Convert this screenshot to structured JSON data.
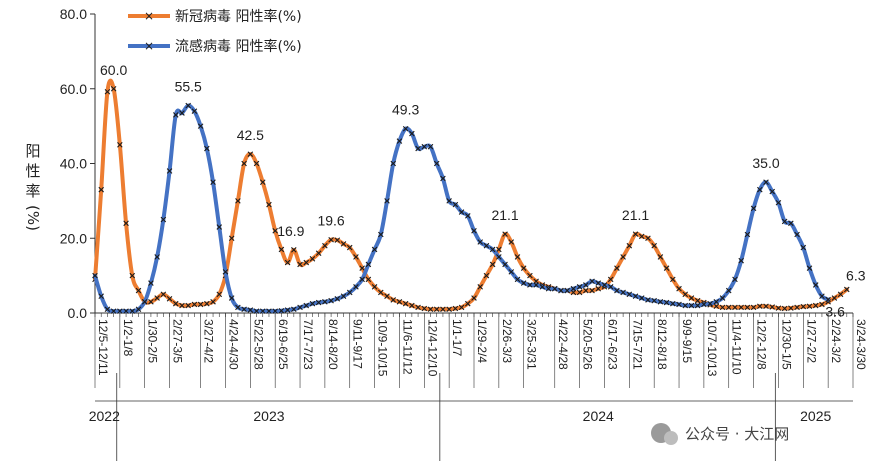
{
  "chart_data": {
    "type": "line",
    "ylabel_chars": [
      "阳",
      "性",
      "率",
      "(%)"
    ],
    "ylim": [
      0,
      80
    ],
    "yticks": [
      "0.0",
      "20.0",
      "40.0",
      "60.0",
      "80.0"
    ],
    "x_range": [
      0,
      171
    ],
    "categories": [
      {
        "label": "12/5-12/11",
        "x": 0
      },
      {
        "label": "1/2-1/8",
        "x": 4
      },
      {
        "label": "1/30-2/5",
        "x": 8
      },
      {
        "label": "2/27-3/5",
        "x": 12
      },
      {
        "label": "3/27-4/2",
        "x": 17
      },
      {
        "label": "4/24-4/30",
        "x": 21
      },
      {
        "label": "5/22-5/28",
        "x": 25
      },
      {
        "label": "6/19-6/25",
        "x": 29
      },
      {
        "label": "7/17-7/23",
        "x": 33
      },
      {
        "label": "8/14-8/20",
        "x": 37
      },
      {
        "label": "9/11-9/17",
        "x": 41
      },
      {
        "label": "10/9-10/15",
        "x": 45
      },
      {
        "label": "11/6-11/12",
        "x": 49
      },
      {
        "label": "12/4-12/10",
        "x": 53
      },
      {
        "label": "1/1-1/7",
        "x": 57
      },
      {
        "label": "1/29-2/4",
        "x": 61
      },
      {
        "label": "2/26-3/3",
        "x": 65
      },
      {
        "label": "3/25-3/31",
        "x": 69
      },
      {
        "label": "4/22-4/28",
        "x": 74
      },
      {
        "label": "5/20-5/26",
        "x": 78
      },
      {
        "label": "6/17-6/23",
        "x": 82
      },
      {
        "label": "7/15-7/21",
        "x": 86
      },
      {
        "label": "8/12-8/18",
        "x": 90
      },
      {
        "label": "9/9-9/15",
        "x": 94
      },
      {
        "label": "10/7-10/13",
        "x": 98
      },
      {
        "label": "11/4-11/10",
        "x": 102
      },
      {
        "label": "12/2-12/8",
        "x": 106
      },
      {
        "label": "12/30-1/5",
        "x": 110
      },
      {
        "label": "1/27-2/2",
        "x": 114
      },
      {
        "label": "2/24-3/2",
        "x": 118
      },
      {
        "label": "3/24-3/30",
        "x": 122
      }
    ],
    "years": [
      {
        "label": "2022",
        "x": 1.5
      },
      {
        "label": "2023",
        "x": 28
      },
      {
        "label": "2024",
        "x": 81
      },
      {
        "label": "2025",
        "x": 116
      }
    ],
    "year_boundaries": [
      3.5,
      55.5,
      109.5
    ],
    "series": [
      {
        "name": "新冠病毒 阳性率(%)",
        "color": "#ED7D31",
        "points": [
          [
            0,
            9
          ],
          [
            1,
            33
          ],
          [
            2,
            59.2
          ],
          [
            3,
            60
          ],
          [
            4,
            45
          ],
          [
            5,
            24
          ],
          [
            6,
            10
          ],
          [
            7,
            6
          ],
          [
            8,
            3
          ],
          [
            9,
            3
          ],
          [
            10,
            4
          ],
          [
            11,
            5
          ],
          [
            12,
            3.8
          ],
          [
            13,
            2.5
          ],
          [
            14,
            2
          ],
          [
            15,
            2
          ],
          [
            16,
            2.3
          ],
          [
            17,
            2.3
          ],
          [
            18,
            2.5
          ],
          [
            19,
            3
          ],
          [
            20,
            5
          ],
          [
            21,
            10
          ],
          [
            22,
            20
          ],
          [
            23,
            30
          ],
          [
            24,
            40
          ],
          [
            25,
            42.5
          ],
          [
            26,
            40
          ],
          [
            27,
            35
          ],
          [
            28,
            29
          ],
          [
            29,
            22
          ],
          [
            30,
            17
          ],
          [
            31,
            13.5
          ],
          [
            32,
            16.9
          ],
          [
            33,
            13
          ],
          [
            34,
            13.5
          ],
          [
            35,
            14.5
          ],
          [
            36,
            16
          ],
          [
            37,
            18
          ],
          [
            38,
            19.6
          ],
          [
            39,
            19.5
          ],
          [
            40,
            18.5
          ],
          [
            41,
            17.5
          ],
          [
            42,
            15
          ],
          [
            43,
            12
          ],
          [
            44,
            9
          ],
          [
            45,
            7
          ],
          [
            46,
            5.5
          ],
          [
            47,
            4.5
          ],
          [
            48,
            3.5
          ],
          [
            49,
            3
          ],
          [
            50,
            2.5
          ],
          [
            51,
            2
          ],
          [
            52,
            1.5
          ],
          [
            53,
            1.2
          ],
          [
            54,
            1
          ],
          [
            55,
            1
          ],
          [
            56,
            1
          ],
          [
            57,
            1
          ],
          [
            58,
            1.2
          ],
          [
            59,
            1.5
          ],
          [
            60,
            2.5
          ],
          [
            61,
            4
          ],
          [
            62,
            7
          ],
          [
            63,
            10
          ],
          [
            64,
            13
          ],
          [
            65,
            17
          ],
          [
            66,
            21.1
          ],
          [
            67,
            19
          ],
          [
            68,
            15
          ],
          [
            69,
            12
          ],
          [
            70,
            10
          ],
          [
            71,
            8.5
          ],
          [
            72,
            7.5
          ],
          [
            73,
            7
          ],
          [
            74,
            6.5
          ],
          [
            75,
            6
          ],
          [
            76,
            6
          ],
          [
            77,
            5.5
          ],
          [
            78,
            5.5
          ],
          [
            79,
            6
          ],
          [
            80,
            6
          ],
          [
            81,
            6.5
          ],
          [
            82,
            7
          ],
          [
            83,
            9
          ],
          [
            84,
            12
          ],
          [
            85,
            15
          ],
          [
            86,
            18
          ],
          [
            87,
            21.1
          ],
          [
            88,
            20.5
          ],
          [
            89,
            20
          ],
          [
            90,
            18
          ],
          [
            91,
            15
          ],
          [
            92,
            12
          ],
          [
            93,
            9
          ],
          [
            94,
            6.5
          ],
          [
            95,
            5
          ],
          [
            96,
            4
          ],
          [
            97,
            3.3
          ],
          [
            98,
            2.8
          ],
          [
            99,
            2.2
          ],
          [
            100,
            1.8
          ],
          [
            101,
            1.5
          ],
          [
            102,
            1.5
          ],
          [
            103,
            1.5
          ],
          [
            104,
            1.5
          ],
          [
            105,
            1.5
          ],
          [
            106,
            1.5
          ],
          [
            107,
            1.8
          ],
          [
            108,
            1.8
          ],
          [
            109,
            1.6
          ],
          [
            110,
            1.3
          ],
          [
            111,
            1.2
          ],
          [
            112,
            1.3
          ],
          [
            113,
            1.5
          ],
          [
            114,
            1.7
          ],
          [
            115,
            1.8
          ],
          [
            116,
            2
          ],
          [
            117,
            2.3
          ],
          [
            118,
            3
          ],
          [
            119,
            4
          ],
          [
            120,
            5
          ],
          [
            121,
            6.3
          ]
        ]
      },
      {
        "name": "流感病毒 阳性率(%)",
        "color": "#4472C4",
        "points": [
          [
            0,
            10
          ],
          [
            1,
            4.5
          ],
          [
            2,
            1
          ],
          [
            3,
            0.5
          ],
          [
            4,
            0.5
          ],
          [
            5,
            0.5
          ],
          [
            6,
            0.5
          ],
          [
            7,
            1
          ],
          [
            8,
            3
          ],
          [
            9,
            8
          ],
          [
            10,
            15
          ],
          [
            11,
            25
          ],
          [
            12,
            38
          ],
          [
            13,
            53
          ],
          [
            14,
            53.5
          ],
          [
            15,
            55.5
          ],
          [
            16,
            54
          ],
          [
            17,
            50
          ],
          [
            18,
            44
          ],
          [
            19,
            35
          ],
          [
            20,
            23
          ],
          [
            21,
            11
          ],
          [
            22,
            4
          ],
          [
            23,
            1.5
          ],
          [
            24,
            1
          ],
          [
            25,
            0.8
          ],
          [
            26,
            0.5
          ],
          [
            27,
            0.5
          ],
          [
            28,
            0.5
          ],
          [
            29,
            0.5
          ],
          [
            30,
            0.6
          ],
          [
            31,
            0.8
          ],
          [
            32,
            1
          ],
          [
            33,
            1.5
          ],
          [
            34,
            2
          ],
          [
            35,
            2.5
          ],
          [
            36,
            2.8
          ],
          [
            37,
            3
          ],
          [
            38,
            3.3
          ],
          [
            39,
            3.8
          ],
          [
            40,
            4.5
          ],
          [
            41,
            5.5
          ],
          [
            42,
            7
          ],
          [
            43,
            9
          ],
          [
            44,
            13
          ],
          [
            45,
            17
          ],
          [
            46,
            21
          ],
          [
            47,
            30
          ],
          [
            48,
            40
          ],
          [
            49,
            46
          ],
          [
            50,
            49.3
          ],
          [
            51,
            48
          ],
          [
            52,
            44
          ],
          [
            53,
            44.5
          ],
          [
            54,
            44.5
          ],
          [
            55,
            40
          ],
          [
            56,
            36
          ],
          [
            57,
            30
          ],
          [
            58,
            29
          ],
          [
            59,
            27
          ],
          [
            60,
            26
          ],
          [
            61,
            22
          ],
          [
            62,
            19
          ],
          [
            63,
            18
          ],
          [
            64,
            17
          ],
          [
            65,
            15
          ],
          [
            66,
            13
          ],
          [
            67,
            11
          ],
          [
            68,
            9
          ],
          [
            69,
            8
          ],
          [
            70,
            7.5
          ],
          [
            71,
            7.5
          ],
          [
            72,
            7
          ],
          [
            73,
            6.5
          ],
          [
            74,
            6.5
          ],
          [
            75,
            6
          ],
          [
            76,
            6
          ],
          [
            77,
            6.5
          ],
          [
            78,
            7
          ],
          [
            79,
            7.5
          ],
          [
            80,
            8.5
          ],
          [
            81,
            8
          ],
          [
            82,
            7.5
          ],
          [
            83,
            7
          ],
          [
            84,
            6
          ],
          [
            85,
            5.5
          ],
          [
            86,
            5
          ],
          [
            87,
            4.5
          ],
          [
            88,
            4
          ],
          [
            89,
            3.5
          ],
          [
            90,
            3.3
          ],
          [
            91,
            3
          ],
          [
            92,
            2.8
          ],
          [
            93,
            2.5
          ],
          [
            94,
            2.3
          ],
          [
            95,
            2
          ],
          [
            96,
            2
          ],
          [
            97,
            2
          ],
          [
            98,
            2.3
          ],
          [
            99,
            2.5
          ],
          [
            100,
            3
          ],
          [
            101,
            4
          ],
          [
            102,
            6
          ],
          [
            103,
            9
          ],
          [
            104,
            14
          ],
          [
            105,
            21
          ],
          [
            106,
            28
          ],
          [
            107,
            33
          ],
          [
            108,
            35
          ],
          [
            109,
            32.5
          ],
          [
            110,
            29.5
          ],
          [
            111,
            24.5
          ],
          [
            112,
            24
          ],
          [
            113,
            21
          ],
          [
            114,
            17.5
          ],
          [
            115,
            12
          ],
          [
            116,
            7.5
          ],
          [
            117,
            4.5
          ],
          [
            118,
            3.6
          ]
        ]
      }
    ],
    "peak_labels": [
      {
        "text": "60.0",
        "x": 3,
        "y": 60,
        "dx": 0,
        "dy": -14
      },
      {
        "text": "55.5",
        "x": 15,
        "y": 55.5,
        "dx": 0,
        "dy": -14
      },
      {
        "text": "42.5",
        "x": 25,
        "y": 42.5,
        "dx": 0,
        "dy": -14
      },
      {
        "text": "16.9",
        "x": 32,
        "y": 16.9,
        "dx": -3,
        "dy": -14
      },
      {
        "text": "19.6",
        "x": 38,
        "y": 19.6,
        "dx": 0,
        "dy": -14
      },
      {
        "text": "49.3",
        "x": 50,
        "y": 49.3,
        "dx": 0,
        "dy": -14
      },
      {
        "text": "21.1",
        "x": 66,
        "y": 21.1,
        "dx": 0,
        "dy": -14
      },
      {
        "text": "21.1",
        "x": 87,
        "y": 21.1,
        "dx": 0,
        "dy": -14
      },
      {
        "text": "35.0",
        "x": 108,
        "y": 35,
        "dx": 0,
        "dy": -14
      },
      {
        "text": "6.3",
        "x": 121,
        "y": 6.3,
        "dx": 9,
        "dy": -9
      },
      {
        "text": "3.6",
        "x": 118,
        "y": 3.6,
        "dx": 7,
        "dy": 17
      }
    ],
    "grid": false,
    "legend_position": "top-left"
  },
  "watermark": {
    "text": "公众号 · 大江网"
  }
}
